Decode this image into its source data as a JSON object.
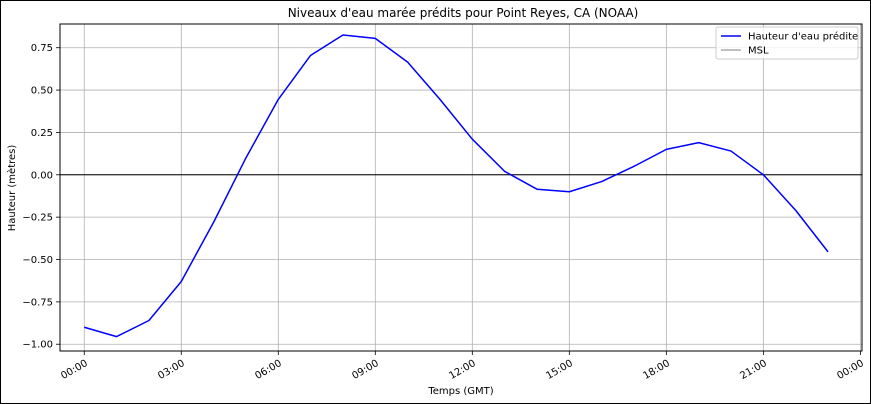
{
  "chart_data": {
    "type": "line",
    "title": "Niveaux d'eau marée prédits pour Point Reyes, CA (NOAA)",
    "xlabel": "Temps (GMT)",
    "ylabel": "Hauteur (mètres)",
    "x": [
      0,
      1,
      2,
      3,
      4,
      5,
      6,
      7,
      8,
      9,
      10,
      11,
      12,
      13,
      14,
      15,
      16,
      17,
      18,
      19,
      20,
      21,
      22,
      23
    ],
    "x_ticks": [
      {
        "hour": 0,
        "label": "00:00"
      },
      {
        "hour": 3,
        "label": "03:00"
      },
      {
        "hour": 6,
        "label": "06:00"
      },
      {
        "hour": 9,
        "label": "09:00"
      },
      {
        "hour": 12,
        "label": "12:00"
      },
      {
        "hour": 15,
        "label": "15:00"
      },
      {
        "hour": 18,
        "label": "18:00"
      },
      {
        "hour": 21,
        "label": "21:00"
      },
      {
        "hour": 24,
        "label": "00:00"
      }
    ],
    "xlim": [
      -0.75,
      24.05
    ],
    "ylim": [
      -1.04,
      0.89
    ],
    "y_ticks": [
      {
        "value": 0.75,
        "label": "0.75"
      },
      {
        "value": 0.5,
        "label": "0.50"
      },
      {
        "value": 0.25,
        "label": "0.25"
      },
      {
        "value": 0.0,
        "label": "0.00"
      },
      {
        "value": -0.25,
        "label": "−0.25"
      },
      {
        "value": -0.5,
        "label": "−0.50"
      },
      {
        "value": -0.75,
        "label": "−0.75"
      },
      {
        "value": -1.0,
        "label": "−1.00"
      }
    ],
    "grid": true,
    "legend_position": "top-right",
    "series": [
      {
        "name": "Hauteur d'eau prédite",
        "color": "#0000ff",
        "values": [
          -0.9,
          -0.955,
          -0.86,
          -0.63,
          -0.28,
          0.1,
          0.445,
          0.705,
          0.825,
          0.805,
          0.665,
          0.445,
          0.21,
          0.02,
          -0.085,
          -0.1,
          -0.04,
          0.05,
          0.15,
          0.19,
          0.14,
          0.0,
          -0.21,
          -0.455
        ]
      }
    ],
    "reference_line": {
      "name": "MSL",
      "value": 0.0,
      "color": "#000000",
      "legend_color": "#808080"
    }
  }
}
